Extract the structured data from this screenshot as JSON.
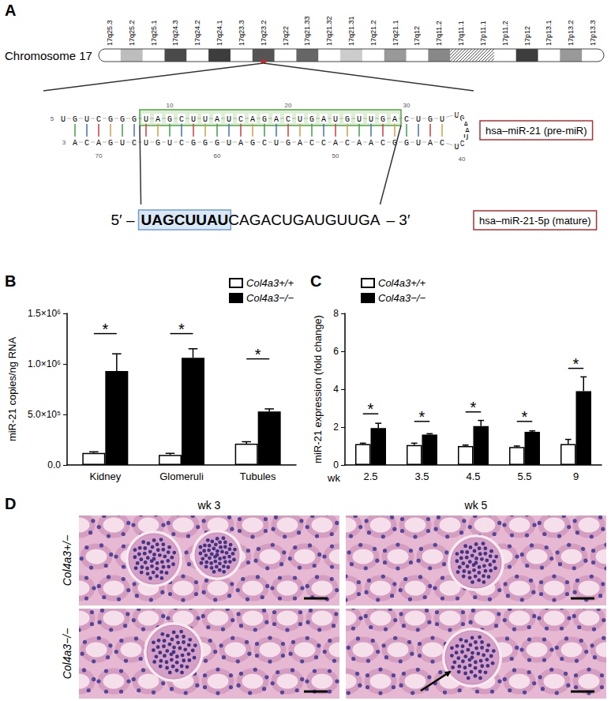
{
  "panel_labels": [
    "A",
    "B",
    "C",
    "D"
  ],
  "panel_a": {
    "chromosome_label": "Chromosome 17",
    "bands": [
      "17q25.3",
      "17q25.2",
      "17q25.1",
      "17q24.3",
      "17q24.2",
      "17q24.1",
      "17q23.3",
      "17q23.2",
      "17q22",
      "17q21.33",
      "17q21.32",
      "17q21.31",
      "17q21.2",
      "17q21.1",
      "17q12",
      "17q11.2",
      "17q11.1",
      "17p11.1",
      "17p11.2",
      "17p12",
      "17p13.1",
      "17p13.2",
      "17p13.3"
    ],
    "highlight_band": "17q23.2",
    "hairpin": {
      "sequence": "UGUCGGGUAGCUUAUCAGACUGAUGUUGACUGUUGAAUCUCAUGGCAACACCAGUCGAUGGGCUGUCUGACA",
      "ends": [
        "5",
        "3"
      ],
      "position_labels": [
        10,
        20,
        30,
        40,
        50,
        60,
        70
      ],
      "label": "hsa–miR-21 (pre-miR)"
    },
    "mature": {
      "prime5": "5′ –",
      "seed": "UAGCUUAU",
      "rest": "CAGACUGAUGUUGA",
      "prime3": "– 3′",
      "label": "hsa–miR-21-5p (mature)"
    }
  },
  "chart_data": [
    {
      "type": "bar",
      "ylabel": "miR-21 copies/ng RNA",
      "categories": [
        "Kidney",
        "Glomeruli",
        "Tubules"
      ],
      "series": [
        {
          "name": "Col4a3+/+",
          "color": "#ffffff",
          "values": [
            120000,
            100000,
            210000
          ],
          "errors": [
            10000,
            15000,
            20000
          ]
        },
        {
          "name": "Col4a3−/−",
          "color": "#000000",
          "values": [
            930000,
            1060000,
            530000
          ],
          "errors": [
            170000,
            90000,
            25000
          ]
        }
      ],
      "ylim": [
        0,
        1500000
      ],
      "yticks": [
        {
          "value": 0,
          "label": "0.0"
        },
        {
          "value": 500000,
          "label": "5.0×10⁵"
        },
        {
          "value": 1000000,
          "label": "1.0×10⁶"
        },
        {
          "value": 1500000,
          "label": "1.5×10⁶"
        }
      ],
      "grid": false,
      "legend": "top-right",
      "annotations": [
        {
          "category": "Kidney",
          "text": "*",
          "y": 1300000
        },
        {
          "category": "Glomeruli",
          "text": "*",
          "y": 1300000
        },
        {
          "category": "Tubules",
          "text": "*",
          "y": 1050000
        }
      ]
    },
    {
      "type": "bar",
      "ylabel": "miR-21 expression (fold change)",
      "xlabel": "wk",
      "categories": [
        "2.5",
        "3.5",
        "4.5",
        "5.5",
        "9"
      ],
      "series": [
        {
          "name": "Col4a3+/+",
          "color": "#ffffff",
          "values": [
            1.1,
            1.05,
            1.0,
            0.95,
            1.1
          ],
          "errors": [
            0.05,
            0.1,
            0.05,
            0.05,
            0.25
          ]
        },
        {
          "name": "Col4a3−/−",
          "color": "#000000",
          "values": [
            1.95,
            1.6,
            2.05,
            1.75,
            3.9
          ],
          "errors": [
            0.25,
            0.05,
            0.3,
            0.05,
            0.75
          ]
        }
      ],
      "ylim": [
        0,
        8
      ],
      "yticks": [
        0,
        2,
        4,
        6,
        8
      ],
      "grid": false,
      "legend": "top-left",
      "annotations": [
        {
          "category": "2.5",
          "text": "*",
          "y": 2.7
        },
        {
          "category": "3.5",
          "text": "*",
          "y": 2.3
        },
        {
          "category": "4.5",
          "text": "*",
          "y": 2.8
        },
        {
          "category": "5.5",
          "text": "*",
          "y": 2.3
        },
        {
          "category": "9",
          "text": "*",
          "y": 5.1
        }
      ]
    }
  ],
  "panel_d": {
    "columns": [
      "wk 3",
      "wk 5"
    ],
    "rows": [
      "Col4a3+/−",
      "Col4a3−/−"
    ]
  }
}
